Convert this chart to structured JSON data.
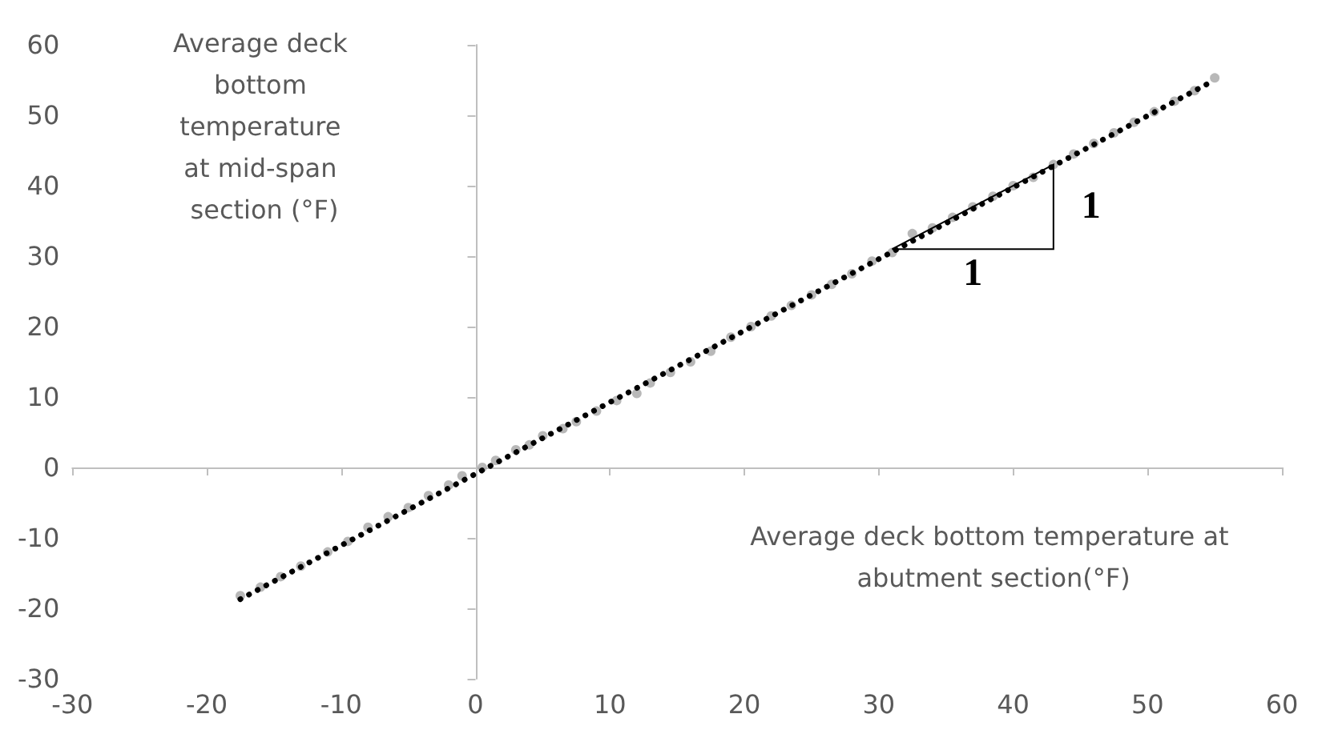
{
  "chart_data": {
    "type": "scatter",
    "xlabel": "Average deck bottom temperature at abutment section(°F)",
    "ylabel": "Average deck bottom temperature at mid-span section (°F)",
    "xlim": [
      -30,
      60
    ],
    "xticks": [
      -30,
      -20,
      -10,
      0,
      10,
      20,
      30,
      40,
      50,
      60
    ],
    "ylim": [
      -30,
      60
    ],
    "yticks": [
      -30,
      -20,
      -10,
      0,
      10,
      20,
      30,
      40,
      50,
      60
    ],
    "series": [
      {
        "color": "#a6a6a6",
        "marker": "circle",
        "x": [
          -17.5,
          -16,
          -14.5,
          -13,
          -11,
          -9.5,
          -8,
          -6.5,
          -5,
          -3.5,
          -2,
          -1,
          0.5,
          1.5,
          3,
          4,
          5,
          6.5,
          7.5,
          9,
          10.5,
          12,
          13,
          14.5,
          16,
          17.5,
          19,
          20.5,
          22,
          23.5,
          25,
          26.5,
          28,
          29.5,
          31,
          32.5,
          34,
          35.5,
          37,
          38.5,
          40,
          41.5,
          43,
          44.5,
          46,
          47.5,
          49,
          50.5,
          52,
          53.5,
          55
        ],
        "values": [
          -18.2,
          -17,
          -15.5,
          -14,
          -12,
          -10.5,
          -8.5,
          -7,
          -5.7,
          -4,
          -2.5,
          -1.2,
          0,
          1,
          2.5,
          3.2,
          4.5,
          5.5,
          6.5,
          8,
          9.5,
          10.5,
          12,
          13.5,
          15,
          16.5,
          18.5,
          20,
          21.5,
          23,
          24.5,
          26,
          27.5,
          29.3,
          30.5,
          33.2,
          34,
          35.5,
          37,
          38.5,
          40,
          41.2,
          43,
          44.5,
          46,
          47.5,
          49,
          50.5,
          52,
          53.5,
          55.3
        ]
      },
      {
        "type": "line",
        "color": "#000000",
        "marker": "none",
        "line_style": "dotted",
        "x": [
          -17.5,
          55
        ],
        "values": [
          -18.7,
          55
        ]
      }
    ],
    "annotations": [
      "1",
      "1"
    ]
  }
}
